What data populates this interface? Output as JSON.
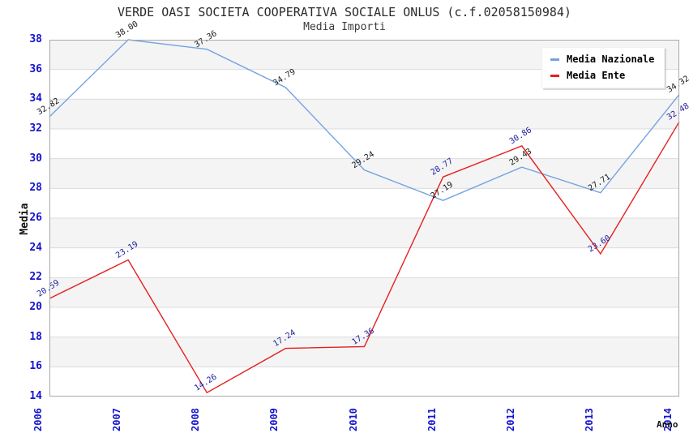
{
  "title": "VERDE OASI SOCIETA COOPERATIVA SOCIALE ONLUS (c.f.02058150984)",
  "subtitle": "Media Importi",
  "chart_data": {
    "type": "line",
    "title": "VERDE OASI SOCIETA COOPERATIVA SOCIALE ONLUS (c.f.02058150984)",
    "subtitle": "Media Importi",
    "xlabel": "Anno",
    "ylabel": "Media",
    "categories": [
      "2006",
      "2007",
      "2008",
      "2009",
      "2010",
      "2011",
      "2012",
      "2013",
      "2014"
    ],
    "series": [
      {
        "name": "Media Nazionale",
        "color": "#74a3e3",
        "label_color": "#1a1a1a",
        "values": [
          32.82,
          38.0,
          37.36,
          34.79,
          29.24,
          27.19,
          29.43,
          27.71,
          34.32
        ]
      },
      {
        "name": "Media Ente",
        "color": "#e61f1f",
        "label_color": "#2222a0",
        "values": [
          20.59,
          23.19,
          14.26,
          17.24,
          17.36,
          28.77,
          30.86,
          23.6,
          32.48
        ]
      }
    ],
    "ylim": [
      14,
      38
    ],
    "ytick_step": 2,
    "yticks": [
      38,
      36,
      34,
      32,
      30,
      28,
      26,
      24,
      22,
      20,
      18,
      16,
      14
    ],
    "grid": "horizontal-bands",
    "band_colors": [
      "#ffffff",
      "#f4f4f4"
    ],
    "gridline_color": "#dcdcdc",
    "plot_border_color": "#a8a8a8",
    "tick_label_color": "#1414cc",
    "legend_position": "top-right",
    "point_label_format": "2-decimals",
    "point_label_rotation_deg": -32
  }
}
